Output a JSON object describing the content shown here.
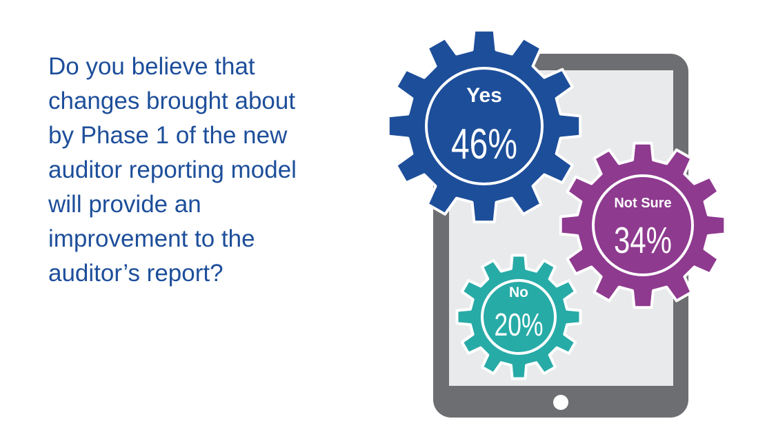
{
  "question_lines": [
    "Do you believe that",
    "changes brought about",
    "by Phase 1 of the new",
    "auditor reporting model",
    "will provide an",
    "improvement to the",
    "auditor’s report?"
  ],
  "colors": {
    "question_text": "#1d4e9a",
    "tablet_frame": "#6d6e71",
    "tablet_screen": "#e9eaeb",
    "yes": "#1d4e9a",
    "not_sure": "#8e3a8f",
    "no": "#27aba7"
  },
  "chart_data": {
    "type": "pie",
    "categories": [
      "Yes",
      "Not Sure",
      "No"
    ],
    "values": [
      46,
      34,
      20
    ],
    "value_labels": [
      "46%",
      "34%",
      "20%"
    ],
    "unit": "%"
  }
}
